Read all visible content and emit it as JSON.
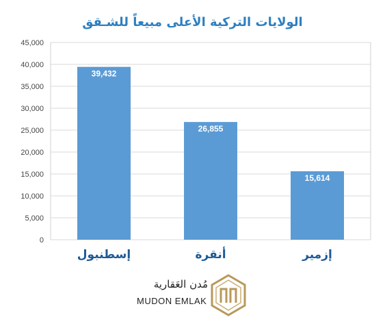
{
  "chart_data": {
    "type": "bar",
    "title": "الولايات التركية الأعلى مبيعاً للشـقق",
    "categories": [
      "إسطنبول",
      "أنقرة",
      "إزمير"
    ],
    "values": [
      39432,
      26855,
      15614
    ],
    "data_labels": [
      "39,432",
      "26,855",
      "15,614"
    ],
    "ylim": [
      0,
      45000
    ],
    "yticks": [
      0,
      5000,
      10000,
      15000,
      20000,
      25000,
      30000,
      35000,
      40000,
      45000
    ],
    "ytick_labels": [
      "0",
      "5,000",
      "10,000",
      "15,000",
      "20,000",
      "25,000",
      "30,000",
      "35,000",
      "40,000",
      "45,000"
    ],
    "grid": true,
    "bar_color": "#5b9bd5",
    "title_color": "#2e7fc0",
    "category_label_color": "#1e5a96"
  },
  "logo": {
    "arabic_text": "مُدن العَقارية",
    "latin_text": "MUDON EMLAK",
    "gold_color": "#b8985a"
  }
}
